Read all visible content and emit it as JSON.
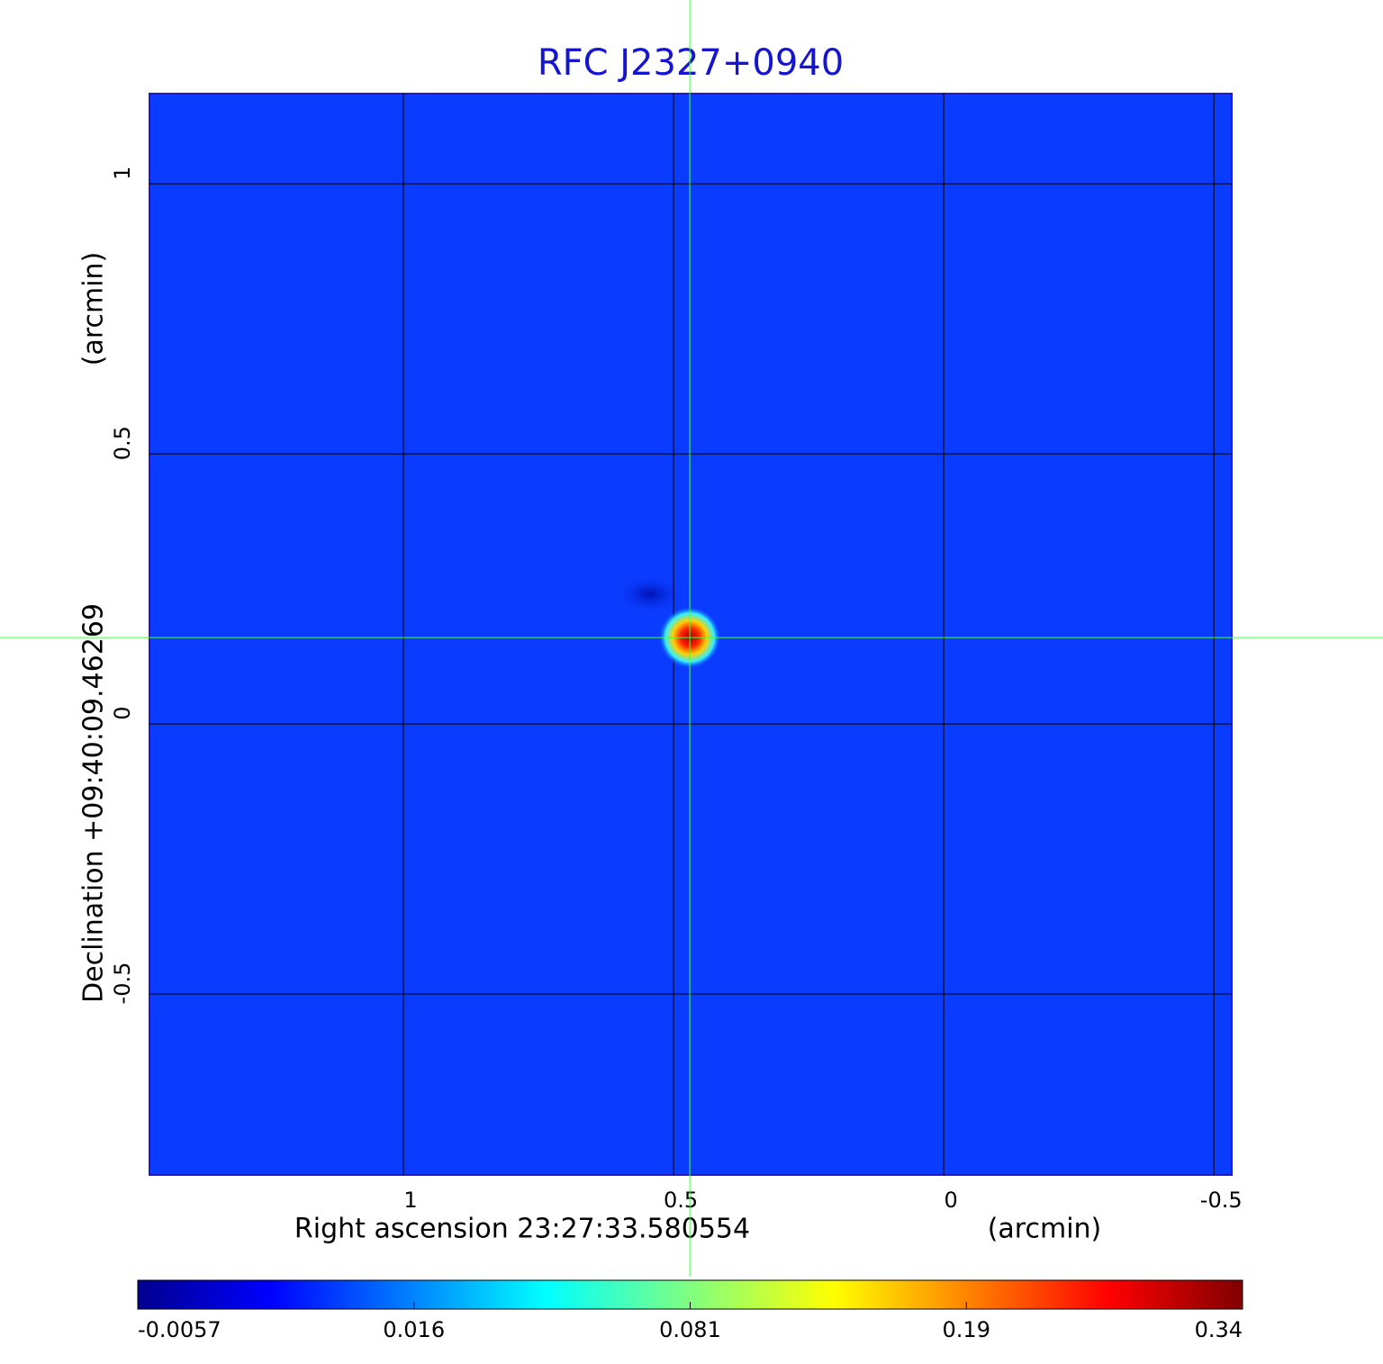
{
  "chart_data": {
    "type": "image",
    "title": "RFC J2327+0940",
    "xlabel": "Right ascension  23:27:33.580554",
    "xunit": "(arcmin)",
    "ylabel": "Declination  +09:40:09.46269",
    "yunit": "(arcmin)",
    "xlim": [
      1.47,
      -0.533
    ],
    "xticks": [
      1.0,
      0.5,
      0.0,
      -0.5
    ],
    "ylim": [
      -0.835,
      1.167
    ],
    "yticks": [
      1.0,
      0.5,
      0.0,
      -0.5
    ],
    "grid": true,
    "source": {
      "x": 0.47,
      "y": 0.16,
      "value": 0.34
    },
    "colorbar_ticks": [
      -0.0057,
      0.016,
      0.081,
      0.19,
      0.34
    ]
  }
}
